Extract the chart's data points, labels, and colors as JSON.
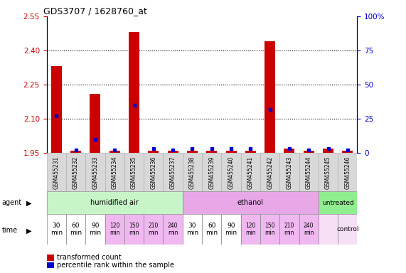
{
  "title": "GDS3707 / 1628760_at",
  "samples": [
    "GSM455231",
    "GSM455232",
    "GSM455233",
    "GSM455234",
    "GSM455235",
    "GSM455236",
    "GSM455237",
    "GSM455238",
    "GSM455239",
    "GSM455240",
    "GSM455241",
    "GSM455242",
    "GSM455243",
    "GSM455244",
    "GSM455245",
    "GSM455246"
  ],
  "transformed_count": [
    2.33,
    1.96,
    2.21,
    1.96,
    2.48,
    1.96,
    1.96,
    1.96,
    1.96,
    1.96,
    1.96,
    2.44,
    1.97,
    1.96,
    1.97,
    1.96
  ],
  "percentile_rank": [
    27,
    2,
    10,
    2,
    35,
    3,
    2,
    3,
    3,
    3,
    3,
    32,
    3,
    2,
    3,
    2
  ],
  "ylim_left": [
    1.95,
    2.55
  ],
  "ylim_right": [
    0,
    100
  ],
  "yticks_left": [
    1.95,
    2.1,
    2.25,
    2.4,
    2.55
  ],
  "yticks_right": [
    0,
    25,
    50,
    75,
    100
  ],
  "baseline": 1.95,
  "agent_groups": [
    {
      "label": "humidified air",
      "start": 0,
      "end": 7,
      "color": "#c8f5c8"
    },
    {
      "label": "ethanol",
      "start": 7,
      "end": 14,
      "color": "#e8a8e8"
    },
    {
      "label": "untreated",
      "start": 14,
      "end": 16,
      "color": "#90ee90"
    }
  ],
  "time_labels_14": [
    "30\nmin",
    "60\nmin",
    "90\nmin",
    "120\nmin",
    "150\nmin",
    "210\nmin",
    "240\nmin",
    "30\nmin",
    "60\nmin",
    "90\nmin",
    "120\nmin",
    "150\nmin",
    "210\nmin",
    "240\nmin"
  ],
  "time_bg_14": [
    "#ffffff",
    "#ffffff",
    "#ffffff",
    "#f0b8f0",
    "#f0b8f0",
    "#f0b8f0",
    "#f0b8f0",
    "#ffffff",
    "#ffffff",
    "#ffffff",
    "#f0b8f0",
    "#f0b8f0",
    "#f0b8f0",
    "#f0b8f0"
  ],
  "time_last2_bg": "#f5e0f5",
  "bar_color": "#cc0000",
  "marker_color": "#0000cc",
  "background_color": "#ffffff",
  "label_color_left": "#cc0000",
  "label_color_right": "#0000cc",
  "grid_yticks": [
    2.1,
    2.25,
    2.4
  ]
}
